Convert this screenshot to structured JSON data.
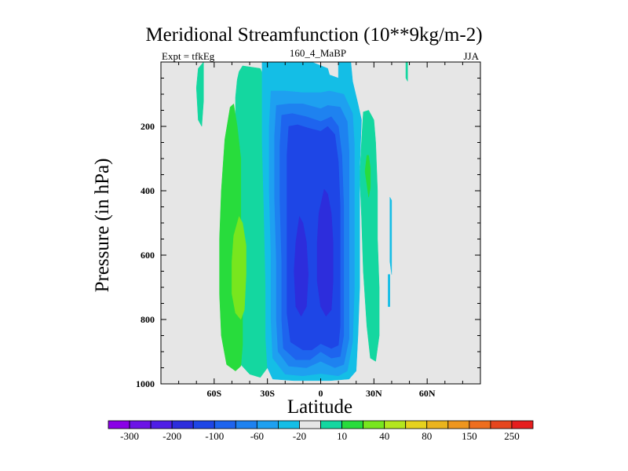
{
  "chart_data": {
    "type": "heatmap",
    "title": "Meridional Streamfunction (10**9kg/m-2)",
    "subtitle_left": "Expt = tfkEg",
    "subtitle_center": "160_4_MaBP",
    "subtitle_right": "JJA",
    "xlabel": "Latitude",
    "ylabel": "Pressure (in hPa)",
    "x_range": [
      -90,
      90
    ],
    "y_range": [
      1000,
      0
    ],
    "x_ticks": [
      {
        "value": -60,
        "label": "60S"
      },
      {
        "value": -30,
        "label": "30S"
      },
      {
        "value": 0,
        "label": "0"
      },
      {
        "value": 30,
        "label": "30N"
      },
      {
        "value": 60,
        "label": "60N"
      }
    ],
    "y_ticks": [
      {
        "value": 200,
        "label": "200"
      },
      {
        "value": 400,
        "label": "400"
      },
      {
        "value": 600,
        "label": "600"
      },
      {
        "value": 800,
        "label": "800"
      },
      {
        "value": 1000,
        "label": "1000"
      }
    ],
    "background_color": "#e6e6e6",
    "colorbar": {
      "colors": [
        "#8a00e6",
        "#6c14e6",
        "#4f1ee6",
        "#2d2ddc",
        "#1e46e6",
        "#1e64ee",
        "#1e82f0",
        "#1ea0f0",
        "#14bee6",
        "#e6e6e6",
        "#14d7a0",
        "#28dc3c",
        "#78e61e",
        "#b4e61e",
        "#e6d21e",
        "#eab41e",
        "#ee961e",
        "#ee6e1e",
        "#e6461e",
        "#e61e1e"
      ],
      "labels": [
        {
          "text": "-300",
          "edge": 1
        },
        {
          "text": "-200",
          "edge": 3
        },
        {
          "text": "-100",
          "edge": 5
        },
        {
          "text": "-60",
          "edge": 7
        },
        {
          "text": "-20",
          "edge": 9
        },
        {
          "text": "10",
          "edge": 11
        },
        {
          "text": "40",
          "edge": 13
        },
        {
          "text": "80",
          "edge": 15
        },
        {
          "text": "150",
          "edge": 17
        },
        {
          "text": "250",
          "edge": 19
        }
      ]
    },
    "regions": [
      {
        "level": 10,
        "color": "#14d7a0",
        "points": [
          [
            -44,
            12
          ],
          [
            -46,
            30
          ],
          [
            -47,
            55
          ],
          [
            -48,
            110
          ],
          [
            -48,
            220
          ],
          [
            -48,
            450
          ],
          [
            -48,
            700
          ],
          [
            -48,
            860
          ],
          [
            -45,
            940
          ],
          [
            -40,
            970
          ],
          [
            -34,
            980
          ],
          [
            -30,
            950
          ],
          [
            -28,
            880
          ],
          [
            -27,
            760
          ],
          [
            -26,
            600
          ],
          [
            -26,
            400
          ],
          [
            -26,
            250
          ],
          [
            -27,
            150
          ],
          [
            -31,
            60
          ],
          [
            -34,
            20
          ]
        ]
      },
      {
        "level": 10,
        "color": "#14d7a0",
        "points": [
          [
            -66,
            0
          ],
          [
            -69,
            20
          ],
          [
            -70,
            80
          ],
          [
            -69,
            180
          ],
          [
            -67,
            200
          ],
          [
            -66,
            120
          ],
          [
            -66,
            40
          ]
        ]
      },
      {
        "level": 10,
        "color": "#14d7a0",
        "points": [
          [
            24,
            155
          ],
          [
            23,
            250
          ],
          [
            22,
            350
          ],
          [
            23,
            480
          ],
          [
            24,
            650
          ],
          [
            26,
            820
          ],
          [
            28,
            920
          ],
          [
            31,
            930
          ],
          [
            33,
            850
          ],
          [
            33,
            700
          ],
          [
            32,
            550
          ],
          [
            32,
            400
          ],
          [
            31,
            250
          ],
          [
            30,
            180
          ],
          [
            27,
            150
          ]
        ]
      },
      {
        "level": 10,
        "color": "#14d7a0",
        "points": [
          [
            48,
            0
          ],
          [
            48,
            50
          ],
          [
            49,
            60
          ],
          [
            49,
            0
          ]
        ]
      },
      {
        "level": 10,
        "color": "#14bee6",
        "points": [
          [
            39,
            420
          ],
          [
            39,
            620
          ],
          [
            40,
            660
          ],
          [
            40,
            430
          ]
        ]
      },
      {
        "level": 10,
        "color": "#14bee6",
        "points": [
          [
            38,
            660
          ],
          [
            38,
            760
          ],
          [
            39,
            760
          ],
          [
            39,
            660
          ]
        ]
      },
      {
        "level": 40,
        "color": "#28dc3c",
        "points": [
          [
            -51,
            140
          ],
          [
            -54,
            240
          ],
          [
            -56,
            400
          ],
          [
            -57,
            550
          ],
          [
            -57,
            720
          ],
          [
            -56,
            850
          ],
          [
            -53,
            940
          ],
          [
            -48,
            960
          ],
          [
            -45,
            945
          ],
          [
            -44,
            880
          ],
          [
            -44,
            750
          ],
          [
            -45,
            600
          ],
          [
            -45,
            450
          ],
          [
            -45,
            300
          ],
          [
            -47,
            200
          ],
          [
            -49,
            130
          ]
        ]
      },
      {
        "level": 40,
        "color": "#28dc3c",
        "points": [
          [
            26,
            290
          ],
          [
            25,
            340
          ],
          [
            26,
            380
          ],
          [
            27,
            420
          ],
          [
            28,
            390
          ],
          [
            28,
            330
          ],
          [
            27,
            290
          ]
        ]
      },
      {
        "level": 80,
        "color": "#78e61e",
        "points": [
          [
            -46,
            480
          ],
          [
            -49,
            540
          ],
          [
            -50,
            620
          ],
          [
            -50,
            720
          ],
          [
            -48,
            780
          ],
          [
            -45,
            800
          ],
          [
            -43,
            770
          ],
          [
            -42,
            660
          ],
          [
            -42,
            570
          ],
          [
            -44,
            500
          ]
        ]
      },
      {
        "level": -20,
        "color": "#14bee6",
        "points": [
          [
            -33,
            0
          ],
          [
            -33,
            100
          ],
          [
            -33,
            250
          ],
          [
            -32,
            450
          ],
          [
            -31,
            700
          ],
          [
            -31,
            860
          ],
          [
            -30,
            950
          ],
          [
            -27,
            985
          ],
          [
            -15,
            990
          ],
          [
            -5,
            990
          ],
          [
            5,
            990
          ],
          [
            16,
            985
          ],
          [
            20,
            960
          ],
          [
            21,
            850
          ],
          [
            22,
            700
          ],
          [
            22,
            500
          ],
          [
            22,
            330
          ],
          [
            23,
            180
          ],
          [
            21,
            130
          ],
          [
            18,
            60
          ],
          [
            17,
            0
          ],
          [
            10,
            0
          ],
          [
            10,
            50
          ],
          [
            5,
            40
          ],
          [
            4,
            20
          ],
          [
            -5,
            0
          ]
        ]
      },
      {
        "level": -60,
        "color": "#1ea0f0",
        "points": [
          [
            -28,
            90
          ],
          [
            -29,
            200
          ],
          [
            -29,
            400
          ],
          [
            -28,
            600
          ],
          [
            -28,
            800
          ],
          [
            -27,
            920
          ],
          [
            -20,
            970
          ],
          [
            -10,
            975
          ],
          [
            0,
            968
          ],
          [
            10,
            975
          ],
          [
            15,
            960
          ],
          [
            18,
            870
          ],
          [
            19,
            700
          ],
          [
            19,
            450
          ],
          [
            19,
            260
          ],
          [
            18,
            160
          ],
          [
            13,
            100
          ],
          [
            5,
            90
          ],
          [
            0,
            95
          ],
          [
            -10,
            95
          ],
          [
            -20,
            90
          ]
        ]
      },
      {
        "level": -100,
        "color": "#1e82f0",
        "points": [
          [
            -25,
            135
          ],
          [
            -26,
            230
          ],
          [
            -26,
            420
          ],
          [
            -25,
            620
          ],
          [
            -25,
            800
          ],
          [
            -24,
            900
          ],
          [
            -18,
            945
          ],
          [
            -8,
            950
          ],
          [
            0,
            930
          ],
          [
            8,
            950
          ],
          [
            13,
            940
          ],
          [
            16,
            860
          ],
          [
            16,
            680
          ],
          [
            16,
            450
          ],
          [
            16,
            280
          ],
          [
            15,
            185
          ],
          [
            11,
            140
          ],
          [
            4,
            135
          ],
          [
            0,
            145
          ],
          [
            -10,
            130
          ],
          [
            -18,
            130
          ]
        ]
      },
      {
        "level": -140,
        "color": "#1e64ee",
        "points": [
          [
            -22,
            165
          ],
          [
            -23,
            260
          ],
          [
            -23,
            430
          ],
          [
            -22,
            620
          ],
          [
            -22,
            800
          ],
          [
            -21,
            890
          ],
          [
            -14,
            925
          ],
          [
            -6,
            925
          ],
          [
            0,
            900
          ],
          [
            6,
            920
          ],
          [
            11,
            915
          ],
          [
            13,
            850
          ],
          [
            13,
            680
          ],
          [
            13,
            450
          ],
          [
            12,
            290
          ],
          [
            10,
            200
          ],
          [
            6,
            170
          ],
          [
            0,
            185
          ],
          [
            -8,
            170
          ],
          [
            -16,
            160
          ]
        ]
      },
      {
        "level": -180,
        "color": "#1e46e6",
        "points": [
          [
            -18,
            200
          ],
          [
            -19,
            290
          ],
          [
            -19,
            450
          ],
          [
            -19,
            620
          ],
          [
            -19,
            780
          ],
          [
            -17,
            870
          ],
          [
            -10,
            895
          ],
          [
            -5,
            895
          ],
          [
            0,
            875
          ],
          [
            6,
            890
          ],
          [
            10,
            880
          ],
          [
            11,
            820
          ],
          [
            11,
            660
          ],
          [
            11,
            450
          ],
          [
            10,
            310
          ],
          [
            8,
            225
          ],
          [
            4,
            200
          ],
          [
            0,
            215
          ],
          [
            -7,
            205
          ],
          [
            -13,
            195
          ]
        ]
      },
      {
        "level": -220,
        "color": "#2d2ddc",
        "points": [
          [
            -12,
            480
          ],
          [
            -14,
            560
          ],
          [
            -15,
            650
          ],
          [
            -14,
            760
          ],
          [
            -11,
            790
          ],
          [
            -8,
            760
          ],
          [
            -7,
            660
          ],
          [
            -8,
            560
          ],
          [
            -10,
            500
          ]
        ]
      },
      {
        "level": -220,
        "color": "#2d2ddc",
        "points": [
          [
            2,
            395
          ],
          [
            -1,
            470
          ],
          [
            -2,
            560
          ],
          [
            -2,
            680
          ],
          [
            0,
            760
          ],
          [
            3,
            790
          ],
          [
            6,
            770
          ],
          [
            7,
            680
          ],
          [
            7,
            560
          ],
          [
            6,
            470
          ],
          [
            4,
            410
          ]
        ]
      }
    ]
  }
}
